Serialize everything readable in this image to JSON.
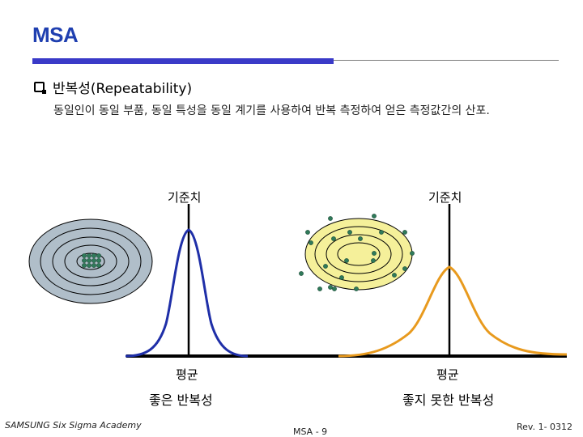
{
  "header": {
    "title": "MSA"
  },
  "section": {
    "heading": "반복성(Repeatability)",
    "description": "동일인이 동일 부품, 동일 특성을 동일 계기를 사용하여 반복 측정하여 얻은 측정값간의 산포."
  },
  "diagram": {
    "left": {
      "reference_label": "기준치",
      "mean_label": "평균",
      "caption": "좋은 반복성",
      "ellipse_fill": "#b0bec9",
      "curve_color": "#1f2fa8"
    },
    "right": {
      "reference_label": "기준치",
      "mean_label": "평균",
      "caption": "좋지 못한 반복성",
      "ellipse_fill": "#f5f09a",
      "curve_color": "#e89a1e"
    },
    "dot_color": "#2f7a5a",
    "axis_color": "#000000"
  },
  "footer": {
    "left": "SAMSUNG Six Sigma Academy",
    "center": "MSA - 9",
    "right": "Rev. 1- 0312"
  }
}
